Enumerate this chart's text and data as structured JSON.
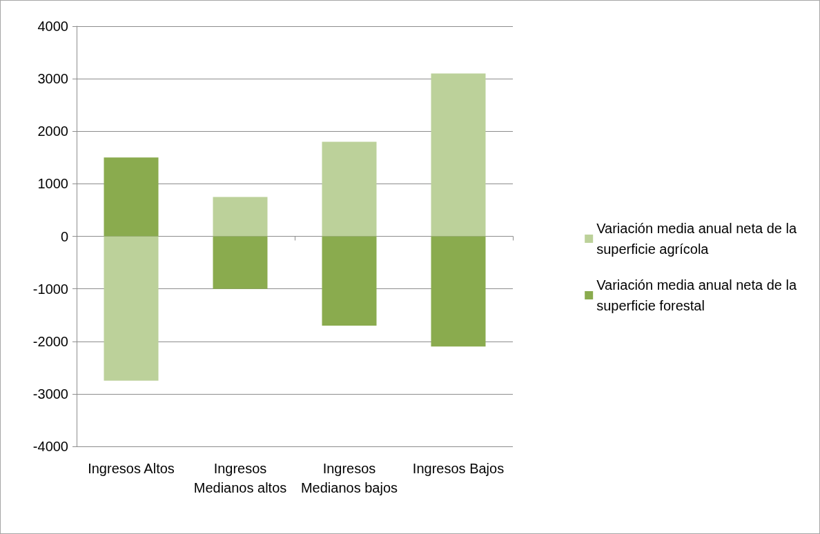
{
  "chart_data": {
    "type": "bar",
    "stacked": true,
    "categories": [
      "Ingresos Altos",
      "Ingresos Medianos altos",
      "Ingresos Medianos bajos",
      "Ingresos Bajos"
    ],
    "series": [
      {
        "name": "Variación media anual neta de la superficie agrícola",
        "color": "#bcd19a",
        "values": [
          -2750,
          750,
          1800,
          3100
        ]
      },
      {
        "name": "Variación media anual neta de la superficie forestal",
        "color": "#8aab4e",
        "values": [
          1500,
          -1000,
          -1700,
          -2100
        ]
      }
    ],
    "ylim": [
      -4000,
      4000
    ],
    "yticks": [
      -4000,
      -3000,
      -2000,
      -1000,
      0,
      1000,
      2000,
      3000,
      4000
    ],
    "grid": "y",
    "legend": "right"
  }
}
